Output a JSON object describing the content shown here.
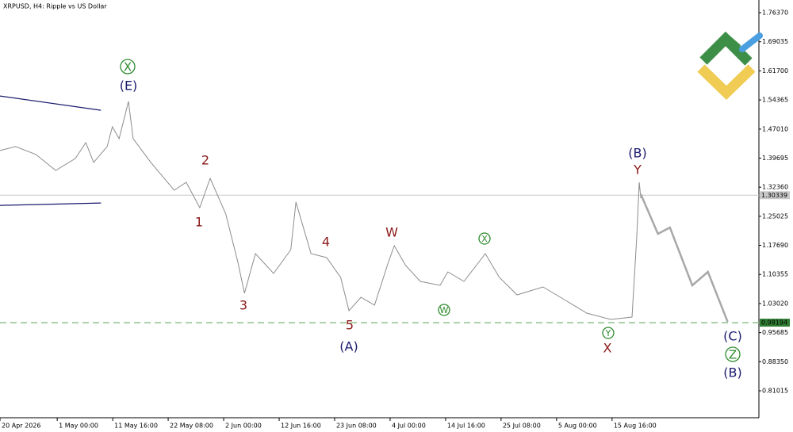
{
  "chart_data": {
    "type": "line",
    "title": "XRPUSD, H4:  Ripple vs US Dollar",
    "xlim": [
      0,
      145.9
    ],
    "ylim": [
      0.7422,
      1.7957
    ],
    "xticks": [
      {
        "value": 0,
        "label": "20 Apr 2026"
      },
      {
        "value": 11,
        "label": "1 May 00:00"
      },
      {
        "value": 21.67,
        "label": "11 May 16:00"
      },
      {
        "value": 32.33,
        "label": "22 May 08:00"
      },
      {
        "value": 43,
        "label": "2 Jun 00:00"
      },
      {
        "value": 53.67,
        "label": "12 Jun 16:00"
      },
      {
        "value": 64.33,
        "label": "23 Jun 08:00"
      },
      {
        "value": 75,
        "label": "4 Jul 00:00"
      },
      {
        "value": 85.67,
        "label": "14 Jul 16:00"
      },
      {
        "value": 96.33,
        "label": "25 Jul 08:00"
      },
      {
        "value": 107,
        "label": "5 Aug 00:00"
      },
      {
        "value": 117.67,
        "label": "15 Aug 16:00"
      }
    ],
    "yticks": [
      {
        "value": 1.7637,
        "label": "1.76370"
      },
      1.69035,
      {
        "value": 1.617,
        "label": "1.61700"
      },
      1.54365,
      {
        "value": 1.4701,
        "label": "1.47010"
      },
      1.39695,
      {
        "value": 1.3236,
        "label": "1.32360"
      },
      1.25025,
      {
        "value": 1.1769,
        "label": "1.17690"
      },
      1.10355,
      {
        "value": 1.0302,
        "label": "1.03020"
      },
      0.95685,
      {
        "value": 0.8835,
        "label": "0.88350"
      },
      0.81015
    ],
    "series": [
      {
        "color": "#8c8c8c",
        "x": [
          0,
          3.0,
          6.9,
          10.7,
          14.5,
          16.5,
          18.0,
          20.6,
          21.6,
          22.9,
          24.7,
          25.6,
          29.0,
          33.5,
          35.8,
          38.4,
          40.4,
          43.4,
          45.7,
          47.0,
          49.1,
          52.6,
          55.9,
          56.9,
          59.8,
          62.8,
          65.5,
          67.1,
          69.4,
          72.0,
          74.7,
          75.8,
          78.0,
          80.8,
          84.6,
          86.1,
          89.2,
          93.3,
          96.0,
          99.4,
          104.4,
          109.0,
          112.8,
          117.4,
          121.5,
          122.4,
          122.9,
          123.2
        ],
        "values": [
          1.416,
          1.426,
          1.406,
          1.366,
          1.396,
          1.436,
          1.386,
          1.426,
          1.476,
          1.446,
          1.54,
          1.446,
          1.386,
          1.316,
          1.336,
          1.272,
          1.346,
          1.256,
          1.136,
          1.056,
          1.156,
          1.106,
          1.166,
          1.286,
          1.156,
          1.146,
          1.096,
          1.012,
          1.046,
          1.026,
          1.136,
          1.176,
          1.126,
          1.086,
          1.076,
          1.11,
          1.086,
          1.156,
          1.096,
          1.052,
          1.072,
          1.036,
          1.006,
          0.99,
          0.996,
          1.196,
          1.336,
          1.296
        ]
      },
      {
        "color": "#a8a8a8",
        "x": [
          123.2,
          126.5,
          128.8,
          133.1,
          136.1,
          139.9
        ],
        "values": [
          1.306,
          1.206,
          1.222,
          1.076,
          1.11,
          0.984
        ]
      },
      {
        "color": "#1a1a6e",
        "x": [
          0,
          19.4
        ],
        "values": [
          1.5537,
          1.5177
        ]
      },
      {
        "color": "#1a1a6e",
        "x": [
          0,
          19.4
        ],
        "values": [
          1.2777,
          1.2837
        ]
      }
    ],
    "hlines": [
      {
        "value": 1.30339,
        "color": "#c8c8c8",
        "style": "solid"
      },
      {
        "value": 0.98194,
        "color": "#8fc08f",
        "style": "dashed"
      }
    ],
    "annotations": [
      {
        "text": "X"
      },
      {
        "text": "(E)"
      },
      {
        "text": "2"
      },
      {
        "text": "1"
      },
      {
        "text": "3"
      },
      {
        "text": "4"
      },
      {
        "text": "5"
      },
      {
        "text": "(A)"
      },
      {
        "text": "W"
      },
      {
        "text": "W"
      },
      {
        "text": "X"
      },
      {
        "text": "(B)"
      },
      {
        "text": "Y"
      },
      {
        "text": "Y"
      },
      {
        "text": "X"
      },
      {
        "text": "(C)"
      },
      {
        "text": "Z"
      },
      {
        "text": "(B)"
      }
    ]
  }
}
